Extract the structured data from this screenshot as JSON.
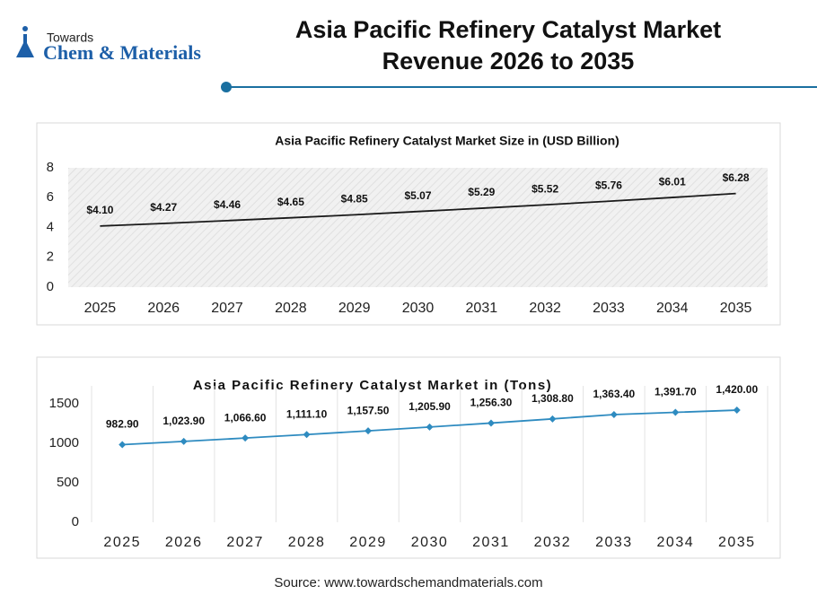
{
  "header": {
    "logo_small": "Towards",
    "logo_brand": "Chem & Materials",
    "title_lines": [
      "Asia Pacific Refinery Catalyst Market",
      "Revenue 2026 to 2035"
    ]
  },
  "chart_data": [
    {
      "type": "line",
      "title": "Asia Pacific Refinery Catalyst Market Size in (USD Billion)",
      "categories": [
        "2025",
        "2026",
        "2027",
        "2028",
        "2029",
        "2030",
        "2031",
        "2032",
        "2033",
        "2034",
        "2035"
      ],
      "values": [
        4.1,
        4.27,
        4.46,
        4.65,
        4.85,
        5.07,
        5.29,
        5.52,
        5.76,
        6.01,
        6.28
      ],
      "value_labels": [
        "$4.10",
        "$4.27",
        "$4.46",
        "$4.65",
        "$4.85",
        "$5.07",
        "$5.29",
        "$5.52",
        "$5.76",
        "$6.01",
        "$6.28"
      ],
      "color": "#1a1a1a",
      "markers": false,
      "background": "hatched",
      "grid": false,
      "ylim": [
        0,
        8
      ],
      "yticks": [
        0,
        2,
        4,
        6,
        8
      ]
    },
    {
      "type": "line",
      "title": "Asia Pacific Refinery Catalyst Market in (Tons)",
      "categories": [
        "2025",
        "2026",
        "2027",
        "2028",
        "2029",
        "2030",
        "2031",
        "2032",
        "2033",
        "2034",
        "2035"
      ],
      "values": [
        982.9,
        1023.9,
        1066.6,
        1111.1,
        1157.5,
        1205.9,
        1256.3,
        1308.8,
        1363.4,
        1391.7,
        1420.0
      ],
      "value_labels": [
        "982.90",
        "1,023.90",
        "1,066.60",
        "1,111.10",
        "1,157.50",
        "1,205.90",
        "1,256.30",
        "1,308.80",
        "1,363.40",
        "1,391.70",
        "1,420.00"
      ],
      "color": "#2e8bc0",
      "markers": true,
      "background": "plain",
      "grid": true,
      "ylim": [
        0,
        1500
      ],
      "yticks": [
        0,
        500,
        1000,
        1500
      ]
    }
  ],
  "footer": {
    "source": "Source: www.towardschemandmaterials.com"
  }
}
